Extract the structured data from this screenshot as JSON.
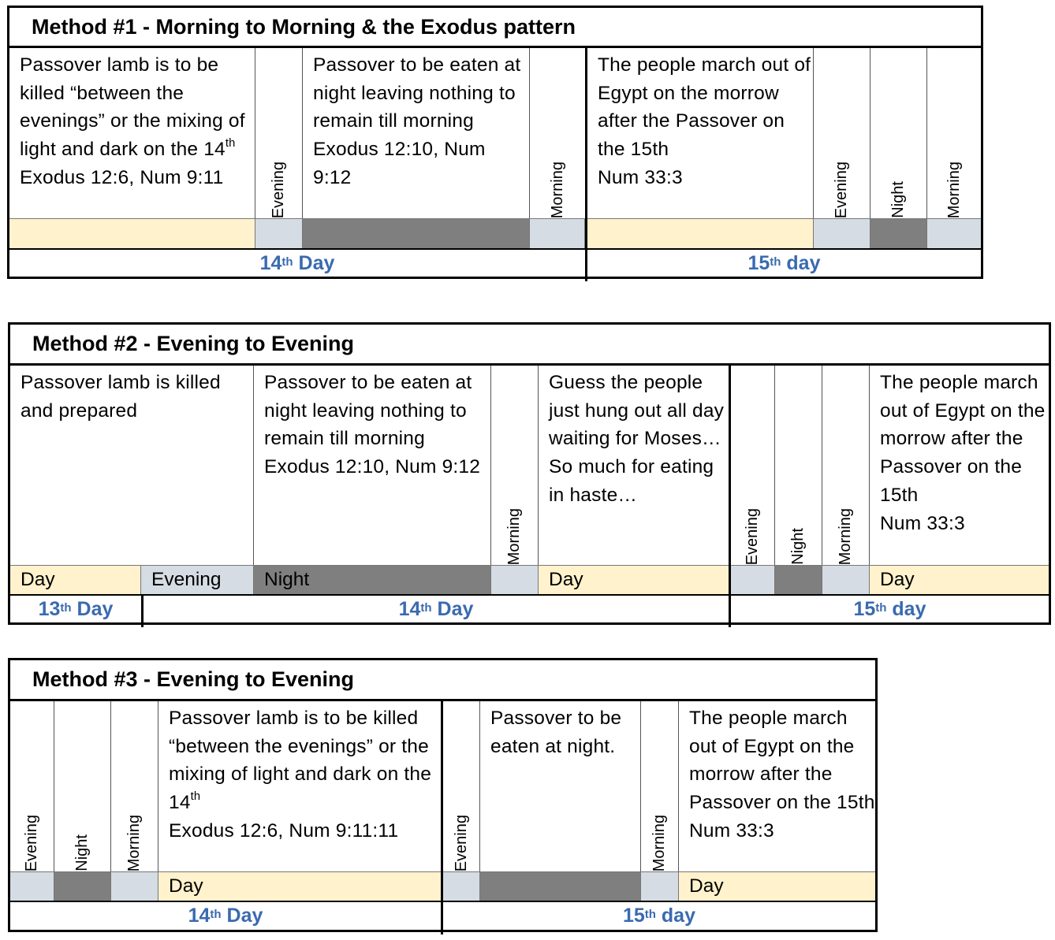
{
  "method1": {
    "title": "Method #1 - Morning to Morning & the Exodus pattern",
    "lamb_text": "Passover lamb is to be killed “between the evenings” or the mixing of light and dark on the 14",
    "lamb_sup": "th",
    "lamb_ref": "Exodus 12:6, Num 9:11",
    "eaten_text": "Passover to be eaten at night leaving nothing to remain till morning",
    "eaten_ref": "Exodus 12:10, Num 9:12",
    "march_text": "The people march out of Egypt on the morrow after the Passover on the 15th",
    "march_ref": "Num 33:3",
    "evening": "Evening",
    "night": "Night",
    "morning": "Morning",
    "day14_num": "14",
    "day14_sup": "th",
    "day14_word": " Day",
    "day15_num": "15",
    "day15_sup": "th",
    "day15_word": " day"
  },
  "method2": {
    "title": "Method #2 - Evening to Evening",
    "lamb_text": "Passover lamb is killed and prepared",
    "eaten_text": "Passover to be eaten at night leaving nothing to remain till morning",
    "eaten_ref": "Exodus 12:10, Num 9:12",
    "guess_text": "Guess the people just hung out all day waiting for Moses…",
    "haste_text": "So much for eating in haste…",
    "march_text": "The people march out of Egypt on the morrow after the Passover on the 15th",
    "march_ref": "Num 33:3",
    "evening": "Evening",
    "night": "Night",
    "morning": "Morning",
    "bar_day": "Day",
    "bar_evening": "Evening",
    "bar_night": "Night",
    "day13_num": "13",
    "day13_sup": "th",
    "day13_word": " Day",
    "day14_num": "14",
    "day14_sup": "th",
    "day14_word": " Day",
    "day15_num": "15",
    "day15_sup": "th",
    "day15_word": " day"
  },
  "method3": {
    "title": "Method #3 - Evening to Evening",
    "lamb_text": "Passover lamb is to be killed “between the evenings” or the mixing of light and dark on the 14",
    "lamb_sup": "th",
    "lamb_ref": "Exodus 12:6, Num 9:11:11",
    "eaten_text": "Passover to be eaten at night.",
    "march_text": "The people march out of Egypt on the morrow after the Passover on the 15th",
    "march_ref": "Num 33:3",
    "evening": "Evening",
    "night": "Night",
    "morning": "Morning",
    "bar_day": "Day",
    "day14_num": "14",
    "day14_sup": "th",
    "day14_word": " Day",
    "day15_num": "15",
    "day15_sup": "th",
    "day15_word": " day"
  },
  "colors": {
    "day_bar": "#fff2cc",
    "evening_morning_bar": "#d6dce4",
    "night_bar": "#7f7f7f",
    "day_label": "#3a6ab0"
  }
}
